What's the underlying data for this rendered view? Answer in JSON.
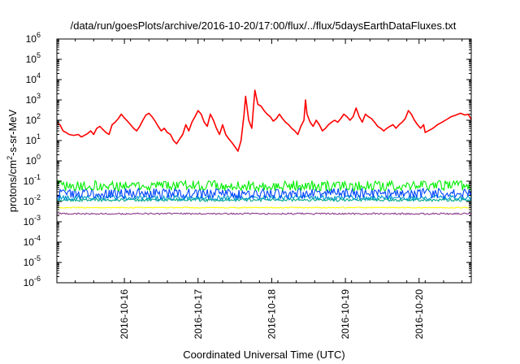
{
  "chart_data": {
    "type": "line",
    "title": "/data/run/goesPlots/archive/2016-10-20/17:00/flux/../flux/5daysEarthDataFluxes.txt",
    "xlabel": "Coordinated Universal Time (UTC)",
    "ylabel": {
      "prefix": "protons/cm",
      "sup": "2",
      "suffix": "-s-sr-MeV"
    },
    "yscale": "log",
    "ylim_exponents": [
      -6,
      6
    ],
    "y_tick_labels": [
      {
        "base": "10",
        "exp": "-6"
      },
      {
        "base": "10",
        "exp": "-5"
      },
      {
        "base": "10",
        "exp": "-4"
      },
      {
        "base": "10",
        "exp": "-3"
      },
      {
        "base": "10",
        "exp": "-2"
      },
      {
        "base": "10",
        "exp": "-1"
      },
      {
        "base": "10",
        "exp": "0"
      },
      {
        "base": "10",
        "exp": "1"
      },
      {
        "base": "10",
        "exp": "2"
      },
      {
        "base": "10",
        "exp": "3"
      },
      {
        "base": "10",
        "exp": "4"
      },
      {
        "base": "10",
        "exp": "5"
      },
      {
        "base": "10",
        "exp": "6"
      }
    ],
    "x_range_days": [
      "2016-10-15T02:00",
      "2016-10-20T17:00"
    ],
    "x_tick_labels": [
      "2016-10-16",
      "2016-10-17",
      "2016-10-18",
      "2016-10-19",
      "2016-10-20"
    ],
    "grid": false,
    "legend": "none",
    "series": [
      {
        "color": "#ff0000",
        "points": [
          [
            "2016-10-15T02:00",
            70
          ],
          [
            "2016-10-15T03:00",
            60
          ],
          [
            "2016-10-15T04:00",
            30
          ],
          [
            "2016-10-15T05:00",
            25
          ],
          [
            "2016-10-15T06:00",
            20
          ],
          [
            "2016-10-15T07:30",
            18
          ],
          [
            "2016-10-15T09:00",
            20
          ],
          [
            "2016-10-15T10:00",
            15
          ],
          [
            "2016-10-15T11:00",
            18
          ],
          [
            "2016-10-15T12:00",
            22
          ],
          [
            "2016-10-15T13:00",
            30
          ],
          [
            "2016-10-15T14:00",
            20
          ],
          [
            "2016-10-15T15:00",
            40
          ],
          [
            "2016-10-15T16:00",
            50
          ],
          [
            "2016-10-15T17:00",
            35
          ],
          [
            "2016-10-15T18:00",
            25
          ],
          [
            "2016-10-15T19:00",
            20
          ],
          [
            "2016-10-15T20:00",
            60
          ],
          [
            "2016-10-15T21:00",
            80
          ],
          [
            "2016-10-15T22:00",
            120
          ],
          [
            "2016-10-15T23:00",
            200
          ],
          [
            "2016-10-16T00:00",
            130
          ],
          [
            "2016-10-16T01:00",
            90
          ],
          [
            "2016-10-16T02:00",
            60
          ],
          [
            "2016-10-16T03:00",
            40
          ],
          [
            "2016-10-16T04:00",
            30
          ],
          [
            "2016-10-16T05:00",
            50
          ],
          [
            "2016-10-16T06:00",
            100
          ],
          [
            "2016-10-16T07:00",
            180
          ],
          [
            "2016-10-16T08:00",
            220
          ],
          [
            "2016-10-16T09:00",
            150
          ],
          [
            "2016-10-16T10:00",
            90
          ],
          [
            "2016-10-16T11:00",
            50
          ],
          [
            "2016-10-16T12:00",
            30
          ],
          [
            "2016-10-16T13:00",
            40
          ],
          [
            "2016-10-16T14:00",
            25
          ],
          [
            "2016-10-16T15:00",
            20
          ],
          [
            "2016-10-16T16:00",
            10
          ],
          [
            "2016-10-16T17:00",
            7
          ],
          [
            "2016-10-16T18:00",
            12
          ],
          [
            "2016-10-16T19:00",
            20
          ],
          [
            "2016-10-16T20:00",
            60
          ],
          [
            "2016-10-16T21:00",
            30
          ],
          [
            "2016-10-16T22:00",
            80
          ],
          [
            "2016-10-16T23:00",
            150
          ],
          [
            "2016-10-17T00:00",
            300
          ],
          [
            "2016-10-17T01:00",
            200
          ],
          [
            "2016-10-17T02:00",
            80
          ],
          [
            "2016-10-17T03:00",
            50
          ],
          [
            "2016-10-17T04:00",
            200
          ],
          [
            "2016-10-17T05:00",
            100
          ],
          [
            "2016-10-17T06:00",
            40
          ],
          [
            "2016-10-17T07:00",
            20
          ],
          [
            "2016-10-17T08:00",
            60
          ],
          [
            "2016-10-17T09:00",
            20
          ],
          [
            "2016-10-17T10:00",
            12
          ],
          [
            "2016-10-17T11:00",
            8
          ],
          [
            "2016-10-17T12:00",
            5
          ],
          [
            "2016-10-17T13:00",
            3
          ],
          [
            "2016-10-17T14:00",
            10
          ],
          [
            "2016-10-17T15:00",
            200
          ],
          [
            "2016-10-17T15:30",
            1500
          ],
          [
            "2016-10-17T16:30",
            100
          ],
          [
            "2016-10-17T17:30",
            40
          ],
          [
            "2016-10-17T18:30",
            3000
          ],
          [
            "2016-10-17T19:30",
            600
          ],
          [
            "2016-10-17T20:30",
            500
          ],
          [
            "2016-10-17T21:30",
            300
          ],
          [
            "2016-10-17T22:30",
            200
          ],
          [
            "2016-10-17T23:30",
            150
          ],
          [
            "2016-10-18T00:30",
            90
          ],
          [
            "2016-10-18T01:30",
            120
          ],
          [
            "2016-10-18T02:30",
            200
          ],
          [
            "2016-10-18T03:30",
            120
          ],
          [
            "2016-10-18T04:30",
            80
          ],
          [
            "2016-10-18T05:30",
            60
          ],
          [
            "2016-10-18T06:30",
            40
          ],
          [
            "2016-10-18T07:30",
            30
          ],
          [
            "2016-10-18T08:30",
            20
          ],
          [
            "2016-10-18T09:30",
            50
          ],
          [
            "2016-10-18T10:30",
            100
          ],
          [
            "2016-10-18T11:00",
            1000
          ],
          [
            "2016-10-18T11:30",
            200
          ],
          [
            "2016-10-18T12:30",
            80
          ],
          [
            "2016-10-18T13:30",
            50
          ],
          [
            "2016-10-18T14:30",
            100
          ],
          [
            "2016-10-18T15:30",
            60
          ],
          [
            "2016-10-18T16:30",
            30
          ],
          [
            "2016-10-18T17:30",
            40
          ],
          [
            "2016-10-18T18:30",
            60
          ],
          [
            "2016-10-18T19:30",
            80
          ],
          [
            "2016-10-18T20:30",
            100
          ],
          [
            "2016-10-18T21:30",
            80
          ],
          [
            "2016-10-18T22:30",
            120
          ],
          [
            "2016-10-18T23:30",
            200
          ],
          [
            "2016-10-19T00:30",
            150
          ],
          [
            "2016-10-19T01:30",
            100
          ],
          [
            "2016-10-19T02:30",
            150
          ],
          [
            "2016-10-19T03:30",
            400
          ],
          [
            "2016-10-19T04:30",
            150
          ],
          [
            "2016-10-19T05:30",
            80
          ],
          [
            "2016-10-19T06:30",
            200
          ],
          [
            "2016-10-19T07:30",
            150
          ],
          [
            "2016-10-19T08:30",
            120
          ],
          [
            "2016-10-19T09:30",
            80
          ],
          [
            "2016-10-19T10:30",
            50
          ],
          [
            "2016-10-19T11:30",
            40
          ],
          [
            "2016-10-19T12:30",
            30
          ],
          [
            "2016-10-19T13:30",
            40
          ],
          [
            "2016-10-19T14:30",
            50
          ],
          [
            "2016-10-19T15:30",
            60
          ],
          [
            "2016-10-19T16:30",
            40
          ],
          [
            "2016-10-19T17:30",
            60
          ],
          [
            "2016-10-19T18:30",
            80
          ],
          [
            "2016-10-19T19:30",
            120
          ],
          [
            "2016-10-19T20:30",
            300
          ],
          [
            "2016-10-19T21:30",
            200
          ],
          [
            "2016-10-19T22:30",
            100
          ],
          [
            "2016-10-19T23:30",
            60
          ],
          [
            "2016-10-20T00:30",
            40
          ],
          [
            "2016-10-20T01:30",
            60
          ],
          [
            "2016-10-20T02:00",
            25
          ],
          [
            "2016-10-20T03:00",
            30
          ],
          [
            "2016-10-20T04:30",
            40
          ],
          [
            "2016-10-20T06:00",
            60
          ],
          [
            "2016-10-20T07:30",
            80
          ],
          [
            "2016-10-20T09:00",
            110
          ],
          [
            "2016-10-20T10:30",
            150
          ],
          [
            "2016-10-20T12:00",
            180
          ],
          [
            "2016-10-20T13:30",
            220
          ],
          [
            "2016-10-20T15:00",
            180
          ],
          [
            "2016-10-20T16:00",
            200
          ],
          [
            "2016-10-20T17:00",
            110
          ]
        ]
      },
      {
        "color": "#00ee00",
        "base": 0.06,
        "spread_decades": 0.5
      },
      {
        "color": "#0044ff",
        "base": 0.025,
        "spread_decades": 0.5
      },
      {
        "color": "#0099cc",
        "base": 0.015,
        "spread_decades": 0.25
      },
      {
        "color": "#00aa88",
        "base": 0.012,
        "spread_decades": 0.15
      },
      {
        "color": "#ffff00",
        "base": 0.005,
        "spread_decades": 0.05
      },
      {
        "color": "#8a3a8a",
        "base": 0.0025,
        "spread_decades": 0.08
      }
    ]
  }
}
